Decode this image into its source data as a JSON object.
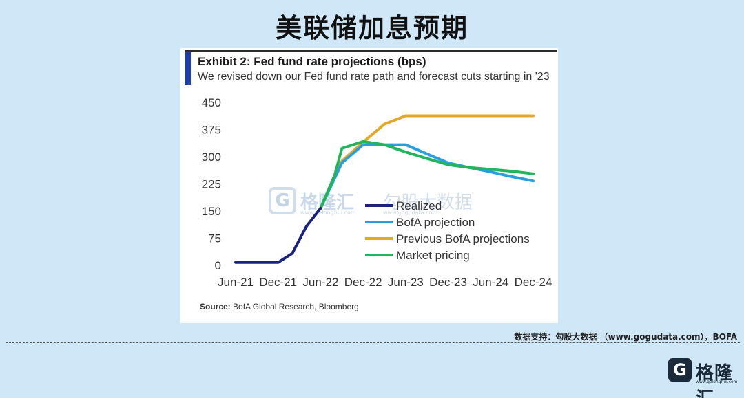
{
  "page": {
    "title": "美联储加息预期",
    "credit": "数据支持：勾股大数据 （www.gogudata.com），BOFA"
  },
  "watermark": {
    "brand": "格隆汇",
    "brand_url": "www.gelonghui.com",
    "brand2": "勾股大数据",
    "brand2_url": "www.gogudata.com"
  },
  "logo": {
    "glyph": "G",
    "text": "格隆汇",
    "url": "www.gelonghui.com"
  },
  "chart_data": {
    "type": "line",
    "title": "Exhibit 2: Fed fund rate projections (bps)",
    "subtitle": "We revised down our Fed fund rate path and forecast cuts starting in '23",
    "source_label": "Source:",
    "source_text": "BofA Global Research, Bloomberg",
    "xlabel": "",
    "ylabel": "",
    "x_ticks": [
      "Jun-21",
      "Dec-21",
      "Jun-22",
      "Dec-22",
      "Jun-23",
      "Dec-23",
      "Jun-24",
      "Dec-24"
    ],
    "x_range": [
      0,
      42
    ],
    "y_ticks": [
      0,
      75,
      150,
      225,
      300,
      375,
      450
    ],
    "ylim": [
      0,
      450
    ],
    "grid": false,
    "legend_position": "center",
    "series": [
      {
        "name": "Realized",
        "color": "#1a237e",
        "points": [
          [
            0,
            8
          ],
          [
            3,
            8
          ],
          [
            6,
            8
          ],
          [
            8,
            33
          ],
          [
            10,
            108
          ],
          [
            12,
            158
          ]
        ]
      },
      {
        "name": "BofA projection",
        "color": "#2a9fe0",
        "points": [
          [
            12,
            158
          ],
          [
            15,
            283
          ],
          [
            18,
            333
          ],
          [
            21,
            333
          ],
          [
            24,
            333
          ],
          [
            27,
            308
          ],
          [
            30,
            283
          ],
          [
            33,
            270
          ],
          [
            36,
            258
          ],
          [
            39,
            245
          ],
          [
            42,
            233
          ]
        ]
      },
      {
        "name": "Previous BofA projections",
        "color": "#e3a825",
        "points": [
          [
            12,
            158
          ],
          [
            15,
            288
          ],
          [
            18,
            340
          ],
          [
            21,
            390
          ],
          [
            24,
            413
          ],
          [
            27,
            413
          ],
          [
            30,
            413
          ],
          [
            33,
            413
          ],
          [
            36,
            413
          ],
          [
            39,
            413
          ],
          [
            42,
            413
          ]
        ]
      },
      {
        "name": "Market pricing",
        "color": "#22b55a",
        "points": [
          [
            12,
            158
          ],
          [
            14,
            250
          ],
          [
            15,
            323
          ],
          [
            18,
            342
          ],
          [
            21,
            333
          ],
          [
            24,
            313
          ],
          [
            27,
            295
          ],
          [
            30,
            278
          ],
          [
            33,
            270
          ],
          [
            36,
            265
          ],
          [
            39,
            260
          ],
          [
            42,
            253
          ]
        ]
      }
    ]
  }
}
